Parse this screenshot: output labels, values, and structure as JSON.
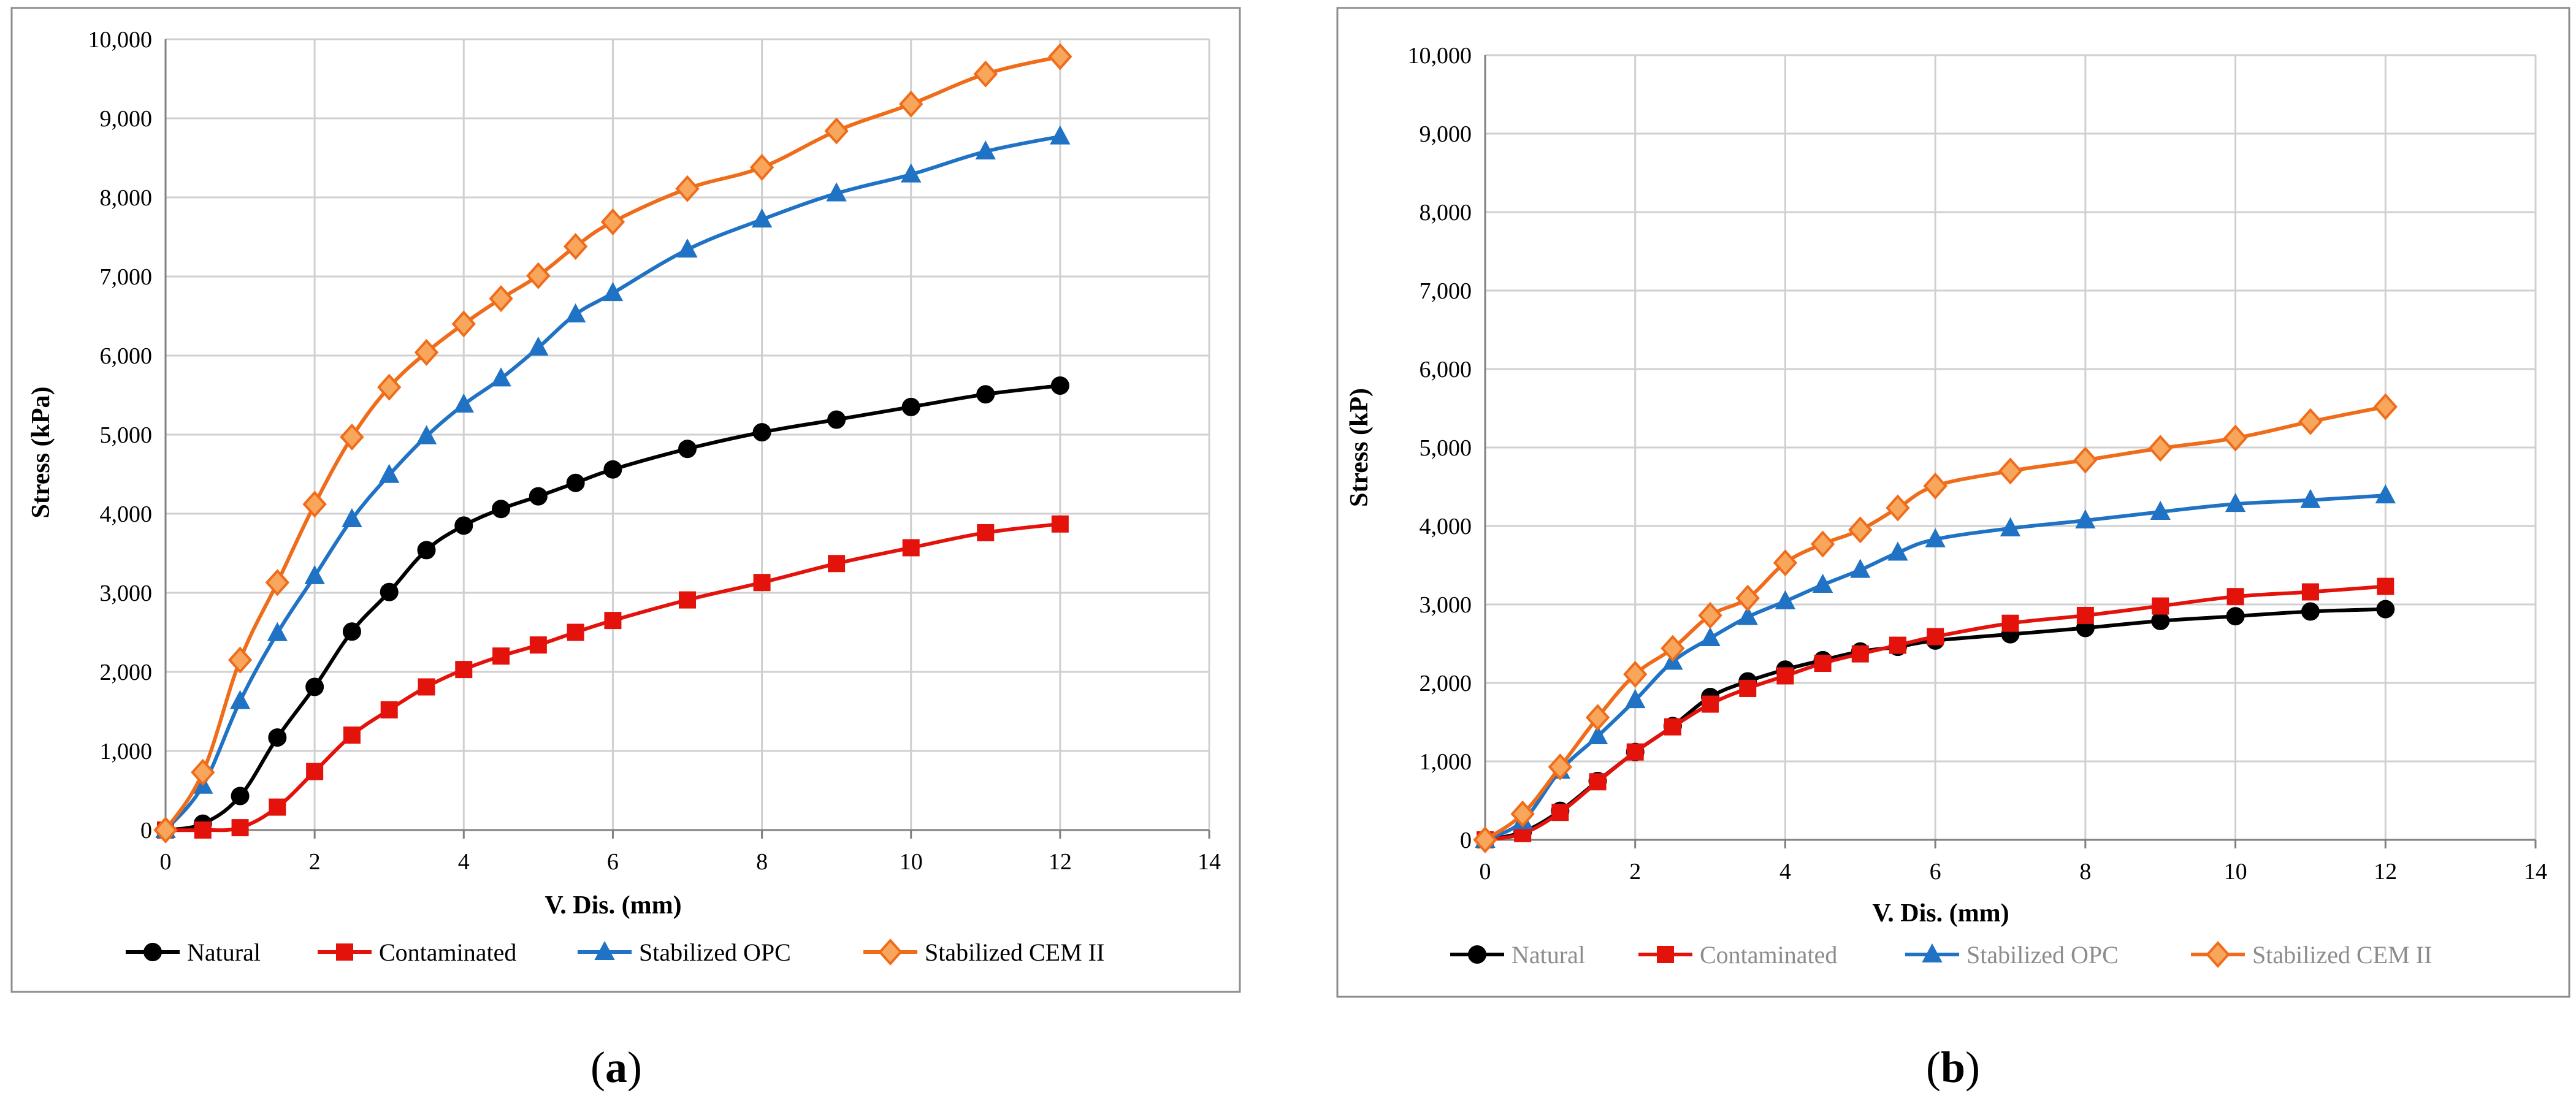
{
  "figure": {
    "panel_labels": [
      {
        "open": "(",
        "letter": "a",
        "close": ")"
      },
      {
        "open": "(",
        "letter": "b",
        "close": ")"
      }
    ]
  },
  "chart_data": [
    {
      "type": "line",
      "title": "",
      "xlabel": "V. Dis. (mm)",
      "ylabel": "Stress (kPa)",
      "xlim": [
        0,
        14
      ],
      "ylim": [
        0,
        10000
      ],
      "xticks": [
        "0",
        "2",
        "4",
        "6",
        "8",
        "10",
        "12",
        "14"
      ],
      "yticks": [
        "0",
        "1,000",
        "2,000",
        "3,000",
        "4,000",
        "5,000",
        "6,000",
        "7,000",
        "8,000",
        "9,000",
        "10,000"
      ],
      "grid": true,
      "legend_position": "bottom",
      "series": [
        {
          "name": "Natural",
          "color": "#000000",
          "marker": "circle",
          "x": [
            0,
            0.5,
            1,
            1.5,
            2,
            2.5,
            3,
            3.5,
            4,
            4.5,
            5,
            5.5,
            6,
            7,
            8,
            9,
            10,
            11,
            12
          ],
          "y": [
            0,
            80,
            430,
            1170,
            1810,
            2510,
            3010,
            3540,
            3850,
            4060,
            4220,
            4390,
            4560,
            4820,
            5030,
            5190,
            5350,
            5510,
            5620
          ]
        },
        {
          "name": "Contaminated",
          "color": "#e3120b",
          "marker": "square",
          "x": [
            0,
            0.5,
            1,
            1.5,
            2,
            2.5,
            3,
            3.5,
            4,
            4.5,
            5,
            5.5,
            6,
            7,
            8,
            9,
            10,
            11,
            12
          ],
          "y": [
            0,
            0,
            30,
            290,
            740,
            1200,
            1520,
            1810,
            2030,
            2200,
            2340,
            2500,
            2650,
            2910,
            3130,
            3370,
            3570,
            3760,
            3870
          ]
        },
        {
          "name": "Stabilized OPC",
          "color": "#1f72c4",
          "marker": "triangle",
          "x": [
            0,
            0.5,
            1,
            1.5,
            2,
            2.5,
            3,
            3.5,
            4,
            4.5,
            5,
            5.5,
            6,
            7,
            8,
            9,
            10,
            11,
            12
          ],
          "y": [
            0,
            560,
            1630,
            2490,
            3210,
            3930,
            4490,
            4980,
            5380,
            5710,
            6100,
            6520,
            6790,
            7340,
            7720,
            8050,
            8290,
            8580,
            8770
          ]
        },
        {
          "name": "Stabilized CEM II",
          "color": "#ef6c1a",
          "marker": "diamond",
          "x": [
            0,
            0.5,
            1,
            1.5,
            2,
            2.5,
            3,
            3.5,
            4,
            4.5,
            5,
            5.5,
            6,
            7,
            8,
            9,
            10,
            11,
            12
          ],
          "y": [
            0,
            730,
            2150,
            3130,
            4120,
            4970,
            5600,
            6040,
            6400,
            6720,
            7010,
            7380,
            7690,
            8110,
            8380,
            8840,
            9180,
            9560,
            9780
          ]
        }
      ]
    },
    {
      "type": "line",
      "title": "",
      "xlabel": "V. Dis. (mm)",
      "ylabel": "Stress (kP)",
      "xlim": [
        0,
        14
      ],
      "ylim": [
        0,
        10000
      ],
      "xticks": [
        "0",
        "2",
        "4",
        "6",
        "8",
        "10",
        "12",
        "14"
      ],
      "yticks": [
        "0",
        "1,000",
        "2,000",
        "3,000",
        "4,000",
        "5,000",
        "6,000",
        "7,000",
        "8,000",
        "9,000",
        "10,000"
      ],
      "grid": true,
      "legend_position": "bottom",
      "series": [
        {
          "name": "Natural",
          "color": "#000000",
          "marker": "circle",
          "x": [
            0,
            0.5,
            1,
            1.5,
            2,
            2.5,
            3,
            3.5,
            4,
            4.5,
            5,
            5.5,
            6,
            7,
            8,
            9,
            10,
            11,
            12
          ],
          "y": [
            0,
            100,
            370,
            750,
            1120,
            1450,
            1820,
            2020,
            2170,
            2290,
            2400,
            2460,
            2540,
            2620,
            2700,
            2790,
            2850,
            2910,
            2940
          ]
        },
        {
          "name": "Contaminated",
          "color": "#e3120b",
          "marker": "square",
          "x": [
            0,
            0.5,
            1,
            1.5,
            2,
            2.5,
            3,
            3.5,
            4,
            4.5,
            5,
            5.5,
            6,
            7,
            8,
            9,
            10,
            11,
            12
          ],
          "y": [
            0,
            80,
            350,
            740,
            1120,
            1440,
            1730,
            1930,
            2090,
            2250,
            2370,
            2480,
            2590,
            2760,
            2860,
            2980,
            3100,
            3160,
            3230
          ]
        },
        {
          "name": "Stabilized OPC",
          "color": "#1f72c4",
          "marker": "triangle",
          "x": [
            0,
            0.5,
            1,
            1.5,
            2,
            2.5,
            3,
            3.5,
            4,
            4.5,
            5,
            5.5,
            6,
            7,
            8,
            9,
            10,
            11,
            12
          ],
          "y": [
            0,
            240,
            880,
            1320,
            1780,
            2270,
            2570,
            2840,
            3040,
            3250,
            3440,
            3660,
            3830,
            3970,
            4070,
            4180,
            4280,
            4330,
            4390
          ]
        },
        {
          "name": "Stabilized CEM II",
          "color": "#ef6c1a",
          "marker": "diamond",
          "x": [
            0,
            0.5,
            1,
            1.5,
            2,
            2.5,
            3,
            3.5,
            4,
            4.5,
            5,
            5.5,
            6,
            7,
            8,
            9,
            10,
            11,
            12
          ],
          "y": [
            0,
            330,
            930,
            1560,
            2110,
            2440,
            2860,
            3080,
            3530,
            3770,
            3950,
            4230,
            4510,
            4700,
            4840,
            4990,
            5120,
            5330,
            5520
          ]
        }
      ]
    }
  ]
}
